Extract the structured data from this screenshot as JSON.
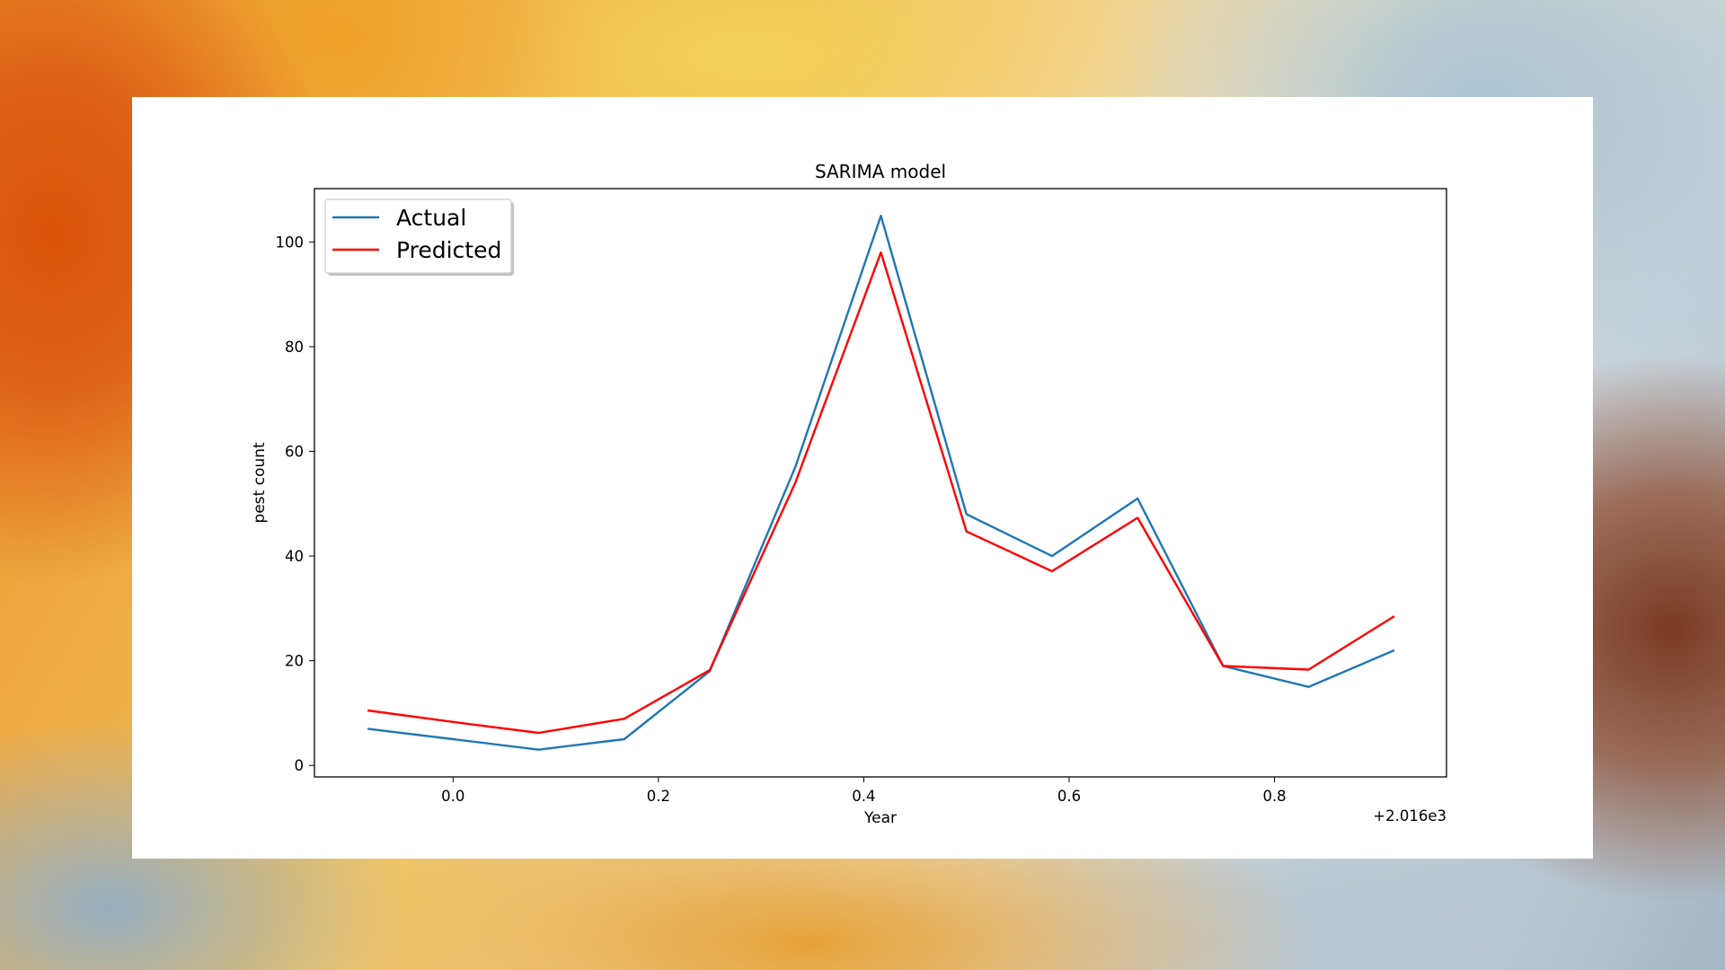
{
  "chart_data": {
    "type": "line",
    "title": "SARIMA model",
    "xlabel": "Year",
    "ylabel": "pest count",
    "x_offset_label": "+2.016e3",
    "x": [
      2015.9167,
      2016.0,
      2016.0833,
      2016.1667,
      2016.25,
      2016.3333,
      2016.4167,
      2016.5,
      2016.5833,
      2016.6667,
      2016.75,
      2016.8333,
      2016.9167
    ],
    "series": [
      {
        "name": "Actual",
        "color": "#1f77b4",
        "values": [
          7,
          5,
          3,
          5,
          18,
          57,
          105,
          48,
          40,
          51,
          19,
          15,
          22
        ]
      },
      {
        "name": "Predicted",
        "color": "#ff0000",
        "values": [
          10.5,
          8.3,
          6.2,
          8.9,
          18.2,
          54,
          98,
          44.7,
          37.1,
          47.3,
          19,
          18.3,
          28.5
        ]
      }
    ],
    "xticks": [
      "0.0",
      "0.2",
      "0.4",
      "0.6",
      "0.8"
    ],
    "xtick_values": [
      2016.0,
      2016.2,
      2016.4,
      2016.6,
      2016.8
    ],
    "yticks": [
      "0",
      "20",
      "40",
      "60",
      "80",
      "100"
    ],
    "ytick_values": [
      0,
      20,
      40,
      60,
      80,
      100
    ],
    "xlim": [
      2015.865,
      2016.9675
    ],
    "ylim": [
      -2.2,
      110.2
    ],
    "grid": false,
    "legend_position": "upper left"
  }
}
